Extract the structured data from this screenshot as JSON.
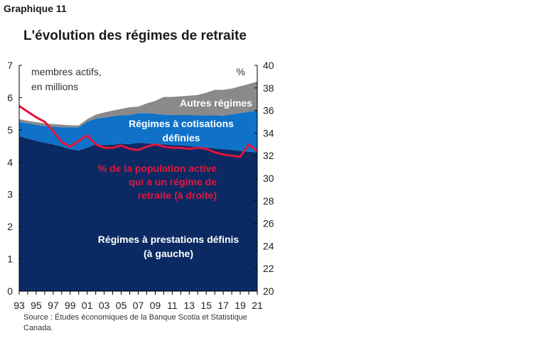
{
  "header": {
    "graph_label": "Graphique 11",
    "title": "L'évolution des régimes de retraite"
  },
  "source": "Source : Études économiques de la Banque Scotia et Statistique Canada.",
  "colors": {
    "db": "#0b2a63",
    "dc": "#0f72c8",
    "other": "#8a8a8a",
    "line": "#e3153b",
    "axis": "#000000"
  },
  "chart_data": {
    "type": "area",
    "x": [
      1993,
      1994,
      1995,
      1996,
      1997,
      1998,
      1999,
      2000,
      2001,
      2002,
      2003,
      2004,
      2005,
      2006,
      2007,
      2008,
      2009,
      2010,
      2011,
      2012,
      2013,
      2014,
      2015,
      2016,
      2017,
      2018,
      2019,
      2020,
      2021
    ],
    "x_tick_labels": [
      "93",
      "95",
      "97",
      "99",
      "01",
      "03",
      "05",
      "07",
      "09",
      "11",
      "13",
      "15",
      "17",
      "19",
      "21"
    ],
    "left_axis": {
      "label": "membres actifs, en millions",
      "ylim": [
        0,
        7
      ],
      "ticks": [
        "0",
        "1",
        "2",
        "3",
        "4",
        "5",
        "6",
        "7"
      ]
    },
    "right_axis": {
      "label": "%",
      "ylim": [
        20,
        40
      ],
      "ticks": [
        "20",
        "22",
        "24",
        "26",
        "28",
        "30",
        "32",
        "34",
        "36",
        "38",
        "40"
      ]
    },
    "stacked_series": [
      {
        "name": "Régimes à prestations définis (à gauche)",
        "axis": "left",
        "values": [
          4.8,
          4.73,
          4.66,
          4.6,
          4.55,
          4.48,
          4.4,
          4.36,
          4.45,
          4.55,
          4.53,
          4.54,
          4.57,
          4.56,
          4.6,
          4.58,
          4.56,
          4.55,
          4.53,
          4.52,
          4.5,
          4.47,
          4.45,
          4.43,
          4.4,
          4.38,
          4.35,
          4.32,
          4.3
        ]
      },
      {
        "name": "Régimes à cotisations définies",
        "axis": "left",
        "values": [
          0.45,
          0.47,
          0.5,
          0.52,
          0.55,
          0.6,
          0.68,
          0.72,
          0.8,
          0.8,
          0.85,
          0.88,
          0.88,
          0.9,
          0.92,
          0.94,
          0.94,
          0.92,
          0.93,
          0.94,
          0.96,
          0.98,
          1.0,
          1.02,
          1.04,
          1.1,
          1.17,
          1.24,
          1.3
        ]
      },
      {
        "name": "Autres régimes",
        "axis": "left",
        "values": [
          0.08,
          0.08,
          0.08,
          0.08,
          0.08,
          0.08,
          0.06,
          0.06,
          0.08,
          0.12,
          0.16,
          0.18,
          0.2,
          0.24,
          0.2,
          0.3,
          0.4,
          0.55,
          0.56,
          0.58,
          0.6,
          0.63,
          0.7,
          0.79,
          0.8,
          0.8,
          0.83,
          0.86,
          0.9
        ]
      }
    ],
    "line_series": {
      "name": "% de la population active qui a un régime de retraite (à droite)",
      "axis": "right",
      "values": [
        36.4,
        35.9,
        35.4,
        35.0,
        34.2,
        33.2,
        32.8,
        33.3,
        33.8,
        33.0,
        32.7,
        32.7,
        32.9,
        32.6,
        32.5,
        32.8,
        33.0,
        32.8,
        32.7,
        32.7,
        32.6,
        32.7,
        32.6,
        32.3,
        32.1,
        32.0,
        31.9,
        33.0,
        32.4
      ]
    },
    "annotations": [
      {
        "id": "other",
        "lines": [
          "Autres régimes"
        ]
      },
      {
        "id": "dc",
        "lines": [
          "Régimes à cotisations",
          "définies"
        ]
      },
      {
        "id": "line",
        "lines": [
          "% de la population active",
          "qui a un régime de",
          "retraite (à droite)"
        ]
      },
      {
        "id": "db",
        "lines": [
          "Régimes à prestations définis",
          "(à gauche)"
        ]
      }
    ]
  }
}
